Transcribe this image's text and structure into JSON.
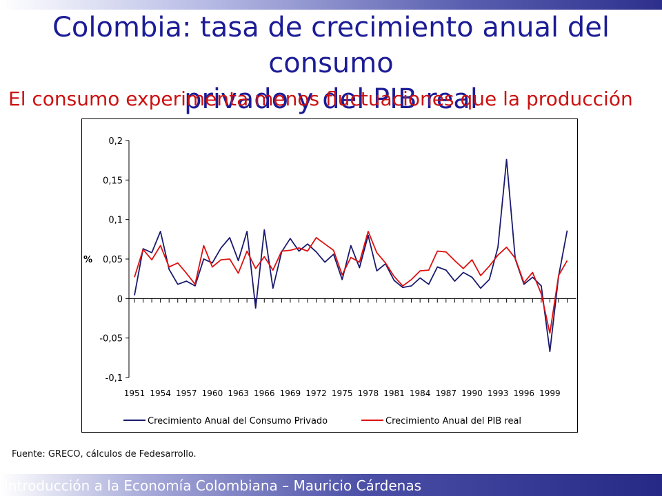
{
  "slide": {
    "title_line1": "Colombia: tasa de crecimiento anual del consumo",
    "title_line2": "privado y del PIB real",
    "subtitle": "El consumo experimenta menos fluctuaciones que la producción",
    "source": "Fuente: GRECO, cálculos de Fedesarrollo.",
    "footer": "Introducción a la Economía Colombiana – Mauricio Cárdenas"
  },
  "colors": {
    "title": "#1c1c96",
    "subtitle": "#cc1111",
    "consumo": "#1a1a6e",
    "pib": "#dd1111"
  },
  "chart_data": {
    "type": "line",
    "ylabel": "%",
    "ylim": [
      -0.1,
      0.2
    ],
    "yticks": [
      0.2,
      0.15,
      0.1,
      0.05,
      0,
      -0.05,
      -0.1
    ],
    "ytick_labels": [
      "0,2",
      "0,15",
      "0,1",
      "0,05",
      "0",
      "-0,05",
      "-0,1"
    ],
    "xtick_labels": [
      "1951",
      "1954",
      "1957",
      "1960",
      "1963",
      "1966",
      "1969",
      "1972",
      "1975",
      "1978",
      "1981",
      "1984",
      "1987",
      "1990",
      "1993",
      "1996",
      "1999"
    ],
    "x": [
      1951,
      1952,
      1953,
      1954,
      1955,
      1956,
      1957,
      1958,
      1959,
      1960,
      1961,
      1962,
      1963,
      1964,
      1965,
      1966,
      1967,
      1968,
      1969,
      1970,
      1971,
      1972,
      1973,
      1974,
      1975,
      1976,
      1977,
      1978,
      1979,
      1980,
      1981,
      1982,
      1983,
      1984,
      1985,
      1986,
      1987,
      1988,
      1989,
      1990,
      1991,
      1992,
      1993,
      1994,
      1995,
      1996,
      1997,
      1998,
      1999,
      2000,
      2001
    ],
    "series": [
      {
        "name": "Crecimiento Anual del Consumo Privado",
        "values": [
          0.004,
          0.063,
          0.058,
          0.085,
          0.037,
          0.018,
          0.022,
          0.016,
          0.05,
          0.045,
          0.064,
          0.077,
          0.048,
          0.085,
          -0.012,
          0.087,
          0.013,
          0.059,
          0.076,
          0.06,
          0.069,
          0.059,
          0.046,
          0.056,
          0.024,
          0.067,
          0.039,
          0.08,
          0.035,
          0.044,
          0.023,
          0.014,
          0.016,
          0.026,
          0.018,
          0.04,
          0.036,
          0.022,
          0.033,
          0.027,
          0.013,
          0.024,
          0.065,
          0.176,
          0.05,
          0.018,
          0.027,
          0.016,
          -0.067,
          0.028,
          0.086
        ]
      },
      {
        "name": "Crecimiento Anual del PIB real",
        "values": [
          0.027,
          0.062,
          0.049,
          0.067,
          0.04,
          0.045,
          0.032,
          0.018,
          0.067,
          0.04,
          0.049,
          0.05,
          0.032,
          0.06,
          0.038,
          0.053,
          0.036,
          0.06,
          0.061,
          0.064,
          0.06,
          0.077,
          0.069,
          0.061,
          0.03,
          0.052,
          0.046,
          0.085,
          0.058,
          0.045,
          0.028,
          0.016,
          0.024,
          0.035,
          0.036,
          0.06,
          0.059,
          0.048,
          0.038,
          0.049,
          0.029,
          0.041,
          0.055,
          0.065,
          0.051,
          0.02,
          0.033,
          0.006,
          -0.044,
          0.029,
          0.048
        ]
      }
    ],
    "legend_position": "bottom"
  }
}
